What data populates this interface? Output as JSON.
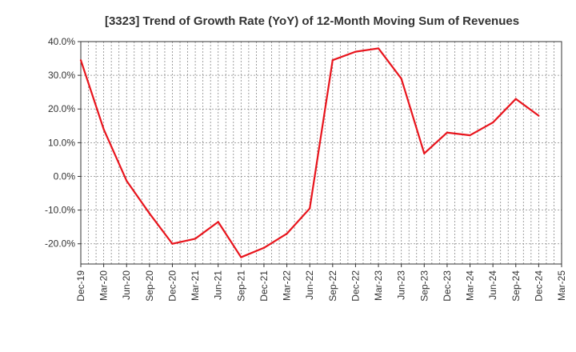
{
  "chart_data": {
    "type": "line",
    "title": "[3323]  Trend of Growth Rate (YoY) of 12-Month Moving Sum of Revenues",
    "xlabel": "",
    "ylabel": "",
    "ylim": [
      -26,
      40
    ],
    "yticks": [
      40,
      30,
      20,
      10,
      0,
      -10,
      -20
    ],
    "ytick_labels": [
      "40.0%",
      "30.0%",
      "20.0%",
      "10.0%",
      "0.0%",
      "-10.0%",
      "-20.0%"
    ],
    "xtick_labels": [
      "Dec-19",
      "Mar-20",
      "Jun-20",
      "Sep-20",
      "Dec-20",
      "Mar-21",
      "Jun-21",
      "Sep-21",
      "Dec-21",
      "Mar-22",
      "Jun-22",
      "Sep-22",
      "Dec-22",
      "Mar-23",
      "Jun-23",
      "Sep-23",
      "Dec-23",
      "Mar-24",
      "Jun-24",
      "Sep-24",
      "Dec-24",
      "Mar-25"
    ],
    "grid": true,
    "line_color": "#e8141c",
    "series": [
      {
        "name": "",
        "x": [
          "Dec-19",
          "Mar-20",
          "Jun-20",
          "Sep-20",
          "Dec-20",
          "Mar-21",
          "Jun-21",
          "Sep-21",
          "Dec-21",
          "Mar-22",
          "Jun-22",
          "Sep-22",
          "Dec-22",
          "Mar-23",
          "Jun-23",
          "Sep-23",
          "Dec-23",
          "Mar-24",
          "Jun-24",
          "Sep-24",
          "Dec-24"
        ],
        "values": [
          34.5,
          14.0,
          -1.3,
          -11.0,
          -20.0,
          -18.5,
          -13.5,
          -24.0,
          -21.2,
          -17.0,
          -9.5,
          34.5,
          37.0,
          38.0,
          29.0,
          6.8,
          13.0,
          12.2,
          16.0,
          23.0,
          18.0
        ]
      }
    ]
  }
}
